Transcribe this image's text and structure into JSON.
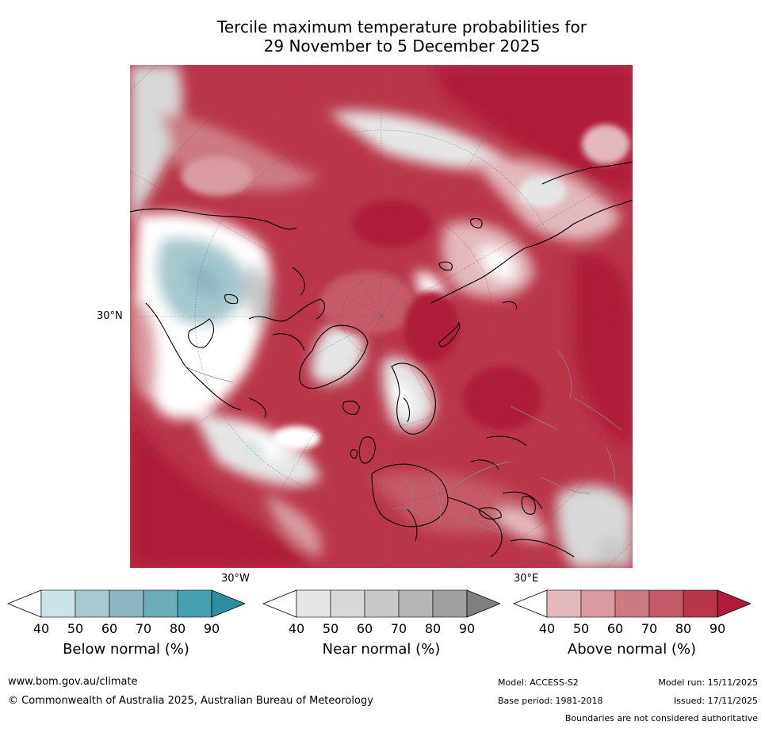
{
  "title": {
    "line1": "Tercile maximum temperature probabilities for",
    "line2": "29 November to 5 December 2025"
  },
  "map": {
    "lat_label": "30°N",
    "lon_labels": [
      "30°W",
      "30°E"
    ]
  },
  "colorbars": [
    {
      "label": "Below normal (%)",
      "ticks": [
        "40",
        "50",
        "60",
        "70",
        "80",
        "90"
      ],
      "colors": [
        "#ffffff",
        "#cbe3e8",
        "#a7c8ce",
        "#8cb7c2",
        "#6dadba",
        "#47a0b0",
        "#2e8fa2"
      ]
    },
    {
      "label": "Near normal (%)",
      "ticks": [
        "40",
        "50",
        "60",
        "70",
        "80",
        "90"
      ],
      "colors": [
        "#ffffff",
        "#e6e6e6",
        "#d8d8d8",
        "#c8c8c8",
        "#b5b5b5",
        "#a0a0a0",
        "#7f7f7f"
      ]
    },
    {
      "label": "Above normal (%)",
      "ticks": [
        "40",
        "50",
        "60",
        "70",
        "80",
        "90"
      ],
      "colors": [
        "#ffffff",
        "#e3b9bd",
        "#d99aa1",
        "#cd7a84",
        "#c55a68",
        "#b9354a",
        "#b01c3b"
      ]
    }
  ],
  "footer": {
    "website": "www.bom.gov.au/climate",
    "copyright": "© Commonwealth of Australia 2025, Australian Bureau of Meteorology",
    "model": "Model: ACCESS-S2",
    "model_run": "Model run: 15/11/2025",
    "base_period": "Base period: 1981-2018",
    "issued": "Issued: 17/11/2025",
    "disclaimer": "Boundaries are not considered authoritative"
  }
}
